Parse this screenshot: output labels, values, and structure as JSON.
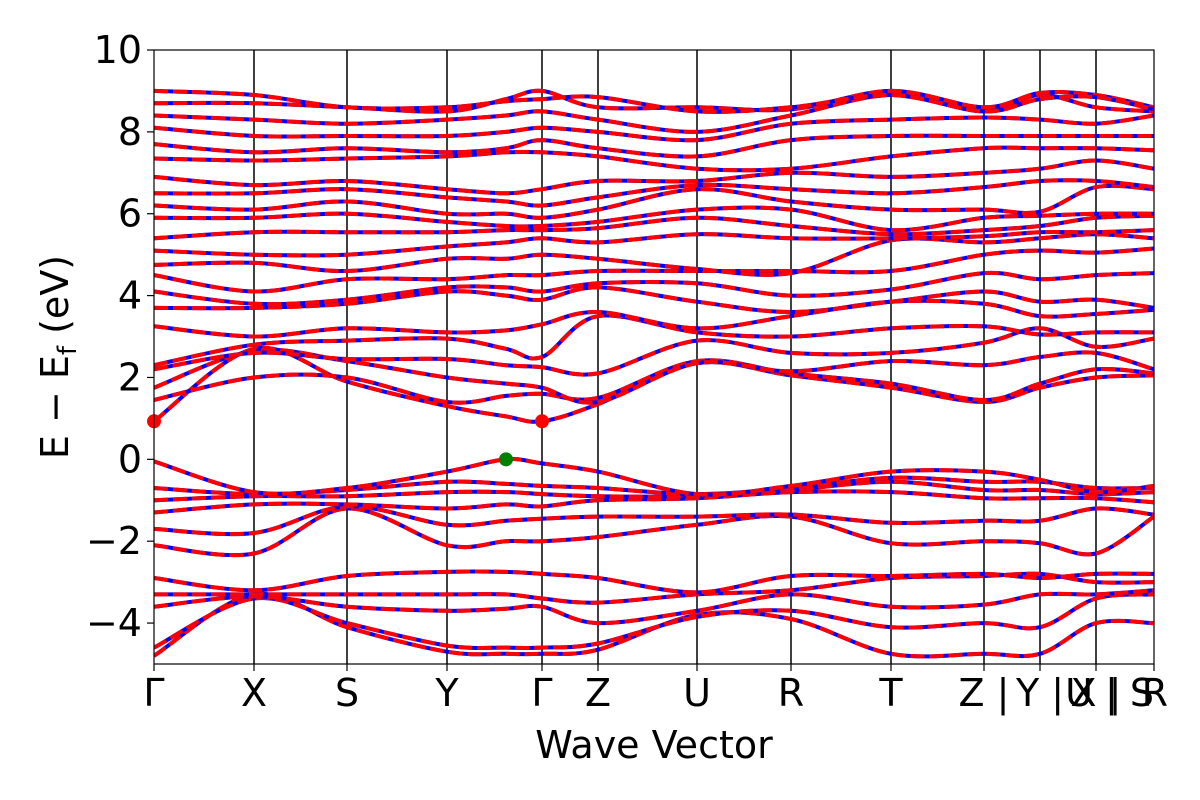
{
  "chart_data": {
    "type": "line",
    "title": "",
    "xlabel": "Wave Vector",
    "ylabel_main": "E − E",
    "ylabel_sub": "f",
    "ylabel_unit": " (eV)",
    "ylim": [
      -5,
      10
    ],
    "yticks": [
      -4,
      -2,
      0,
      2,
      4,
      6,
      8,
      10
    ],
    "ytick_labels": [
      "−4",
      "−2",
      "0",
      "2",
      "4",
      "6",
      "8",
      "10"
    ],
    "xlim": [
      0,
      10
    ],
    "kpoint_positions": [
      0,
      1.0,
      1.93,
      2.93,
      3.88,
      4.44,
      5.43,
      6.37,
      7.37,
      8.3,
      8.86,
      9.42,
      10.0
    ],
    "kpoint_labels": [
      "Γ",
      "X",
      "S",
      "Y",
      "Γ",
      "Z",
      "U",
      "R",
      "T",
      "Z |",
      "Y |",
      "X |",
      "U | S"
    ],
    "last_label": "R",
    "colors": {
      "spin_up": "#ff0000",
      "spin_down": "#0000ff",
      "vbm": "#008000",
      "cbm": "#ff0000",
      "kline": "#000000"
    },
    "vbm": {
      "x": 3.52,
      "y": 0.0
    },
    "cbm": [
      {
        "x": 0.0,
        "y": 0.93
      },
      {
        "x": 3.88,
        "y": 0.93
      }
    ],
    "bands": [
      {
        "name": "",
        "x": [
          0,
          1.0,
          1.93,
          2.93,
          3.52,
          3.88,
          4.44,
          5.43,
          6.37,
          7.37,
          8.3,
          8.86,
          9.42,
          10.0
        ],
        "y": [
          -4.8,
          -3.3,
          -4.1,
          -4.7,
          -4.75,
          -4.75,
          -4.65,
          -3.8,
          -3.9,
          -4.75,
          -4.75,
          -4.75,
          -4.0,
          -4.0
        ]
      },
      {
        "name": "",
        "x": [
          0,
          1.0,
          1.93,
          2.93,
          3.52,
          3.88,
          4.44,
          5.43,
          6.37,
          7.37,
          8.3,
          8.86,
          9.42,
          10.0
        ],
        "y": [
          -4.6,
          -3.4,
          -4.0,
          -4.55,
          -4.6,
          -4.6,
          -4.5,
          -3.85,
          -3.7,
          -4.1,
          -4.0,
          -4.1,
          -3.4,
          -3.3
        ]
      },
      {
        "name": "",
        "x": [
          0,
          1.0,
          1.93,
          2.93,
          3.52,
          3.88,
          4.44,
          5.43,
          6.37,
          7.37,
          8.3,
          8.86,
          9.42,
          10.0
        ],
        "y": [
          -3.6,
          -3.35,
          -3.6,
          -3.7,
          -3.65,
          -3.6,
          -4.0,
          -3.7,
          -3.3,
          -3.6,
          -3.55,
          -3.3,
          -3.3,
          -3.2
        ]
      },
      {
        "name": "",
        "x": [
          0,
          1.0,
          1.93,
          2.93,
          3.52,
          3.88,
          4.44,
          5.43,
          6.37,
          7.37,
          8.3,
          8.86,
          9.42,
          10.0
        ],
        "y": [
          -3.3,
          -3.3,
          -3.3,
          -3.3,
          -3.3,
          -3.4,
          -3.5,
          -3.3,
          -3.2,
          -2.9,
          -2.85,
          -2.8,
          -3.0,
          -3.0
        ]
      },
      {
        "name": "",
        "x": [
          0,
          1.0,
          1.93,
          2.93,
          3.52,
          3.88,
          4.44,
          5.43,
          6.37,
          7.37,
          8.3,
          8.86,
          9.42,
          10.0
        ],
        "y": [
          -2.9,
          -3.2,
          -2.85,
          -2.75,
          -2.75,
          -2.8,
          -2.9,
          -3.25,
          -2.85,
          -2.85,
          -2.8,
          -2.9,
          -2.8,
          -2.8
        ]
      },
      {
        "name": "",
        "x": [
          0,
          1.0,
          1.93,
          2.93,
          3.52,
          3.88,
          4.44,
          5.43,
          6.37,
          7.37,
          8.3,
          8.86,
          9.42,
          10.0
        ],
        "y": [
          -2.1,
          -2.3,
          -1.2,
          -2.1,
          -2.0,
          -2.0,
          -1.9,
          -1.6,
          -1.4,
          -2.05,
          -2.0,
          -2.05,
          -2.3,
          -1.4
        ]
      },
      {
        "name": "",
        "x": [
          0,
          1.0,
          1.93,
          2.93,
          3.52,
          3.88,
          4.44,
          5.43,
          6.37,
          7.37,
          8.3,
          8.86,
          9.42,
          10.0
        ],
        "y": [
          -1.7,
          -1.8,
          -1.15,
          -1.6,
          -1.5,
          -1.45,
          -1.4,
          -1.4,
          -1.35,
          -1.55,
          -1.5,
          -1.5,
          -1.2,
          -1.35
        ]
      },
      {
        "name": "",
        "x": [
          0,
          1.0,
          1.93,
          2.93,
          3.52,
          3.88,
          4.44,
          5.43,
          6.37,
          7.37,
          8.3,
          8.86,
          9.42,
          10.0
        ],
        "y": [
          -1.3,
          -1.1,
          -1.1,
          -1.2,
          -1.1,
          -1.15,
          -1.0,
          -0.95,
          -0.8,
          -0.8,
          -0.95,
          -0.95,
          -0.95,
          -1.05
        ]
      },
      {
        "name": "",
        "x": [
          0,
          1.0,
          1.93,
          2.93,
          3.52,
          3.88,
          4.44,
          5.43,
          6.37,
          7.37,
          8.3,
          8.86,
          9.42,
          10.0
        ],
        "y": [
          -1.0,
          -0.9,
          -0.9,
          -0.8,
          -0.8,
          -0.85,
          -0.9,
          -0.9,
          -0.75,
          -0.55,
          -0.75,
          -0.75,
          -0.85,
          -0.8
        ]
      },
      {
        "name": "",
        "x": [
          0,
          1.0,
          1.93,
          2.93,
          3.52,
          3.88,
          4.44,
          5.43,
          6.37,
          7.37,
          8.3,
          8.86,
          9.42,
          10.0
        ],
        "y": [
          -0.7,
          -0.85,
          -0.75,
          -0.55,
          -0.6,
          -0.65,
          -0.7,
          -0.85,
          -0.7,
          -0.45,
          -0.55,
          -0.55,
          -0.7,
          -0.7
        ]
      },
      {
        "name": "",
        "x": [
          0,
          1.0,
          1.93,
          2.93,
          3.52,
          3.88,
          4.44,
          5.43,
          6.37,
          7.37,
          8.3,
          8.86,
          9.42,
          10.0
        ],
        "y": [
          -0.05,
          -0.8,
          -0.7,
          -0.3,
          0.0,
          -0.1,
          -0.3,
          -0.85,
          -0.65,
          -0.3,
          -0.3,
          -0.5,
          -0.8,
          -0.65
        ]
      },
      {
        "name": "",
        "x": [
          0,
          1.0,
          1.93,
          2.93,
          3.52,
          3.88,
          4.44,
          5.43,
          6.37,
          7.37,
          8.3,
          8.86,
          9.42,
          10.0
        ],
        "y": [
          0.93,
          2.7,
          1.9,
          1.3,
          1.05,
          0.93,
          1.35,
          2.35,
          2.05,
          1.75,
          1.4,
          1.75,
          2.0,
          2.05
        ]
      },
      {
        "name": "",
        "x": [
          0,
          1.0,
          1.93,
          2.93,
          3.52,
          3.88,
          4.44,
          5.43,
          6.37,
          7.37,
          8.3,
          8.86,
          9.42,
          10.0
        ],
        "y": [
          1.45,
          2.0,
          2.0,
          1.4,
          1.55,
          1.6,
          1.5,
          2.4,
          2.1,
          1.85,
          1.45,
          1.85,
          2.2,
          2.1
        ]
      },
      {
        "name": "",
        "x": [
          0,
          1.0,
          1.93,
          2.93,
          3.52,
          3.88,
          4.44,
          5.43,
          6.37,
          7.37,
          8.3,
          8.86,
          9.42,
          10.0
        ],
        "y": [
          1.75,
          2.65,
          2.4,
          2.0,
          1.85,
          1.75,
          1.4,
          2.35,
          2.15,
          2.4,
          2.3,
          2.5,
          2.6,
          2.2
        ]
      },
      {
        "name": "",
        "x": [
          0,
          1.0,
          1.93,
          2.93,
          3.52,
          3.88,
          4.44,
          5.43,
          6.37,
          7.37,
          8.3,
          8.86,
          9.42,
          10.0
        ],
        "y": [
          2.2,
          2.6,
          2.45,
          2.45,
          2.3,
          2.25,
          2.1,
          2.9,
          2.6,
          2.6,
          2.85,
          3.2,
          2.75,
          2.95
        ]
      },
      {
        "name": "",
        "x": [
          0,
          1.0,
          1.93,
          2.93,
          3.52,
          3.88,
          4.44,
          5.43,
          6.37,
          7.37,
          8.3,
          8.86,
          9.42,
          10.0
        ],
        "y": [
          2.3,
          2.8,
          2.9,
          2.95,
          2.7,
          2.5,
          3.5,
          3.1,
          3.0,
          3.2,
          3.25,
          3.05,
          3.1,
          3.1
        ]
      },
      {
        "name": "",
        "x": [
          0,
          1.0,
          1.93,
          2.93,
          3.52,
          3.88,
          4.44,
          5.43,
          6.37,
          7.37,
          8.3,
          8.86,
          9.42,
          10.0
        ],
        "y": [
          3.25,
          3.0,
          3.2,
          3.1,
          3.15,
          3.3,
          3.6,
          3.2,
          3.5,
          3.85,
          3.8,
          3.5,
          3.55,
          3.65
        ]
      },
      {
        "name": "",
        "x": [
          0,
          1.0,
          1.93,
          2.93,
          3.52,
          3.88,
          4.44,
          5.43,
          6.37,
          7.37,
          8.3,
          8.86,
          9.42,
          10.0
        ],
        "y": [
          3.7,
          3.7,
          3.8,
          4.1,
          4.0,
          3.9,
          4.2,
          3.85,
          3.6,
          3.85,
          4.1,
          3.85,
          3.9,
          3.7
        ]
      },
      {
        "name": "",
        "x": [
          0,
          1.0,
          1.93,
          2.93,
          3.52,
          3.88,
          4.44,
          5.43,
          6.37,
          7.37,
          8.3,
          8.86,
          9.42,
          10.0
        ],
        "y": [
          4.1,
          3.8,
          3.9,
          4.2,
          4.2,
          4.1,
          4.3,
          4.3,
          4.0,
          4.15,
          4.55,
          4.4,
          4.5,
          4.55
        ]
      },
      {
        "name": "",
        "x": [
          0,
          1.0,
          1.93,
          2.93,
          3.52,
          3.88,
          4.44,
          5.43,
          6.37,
          7.37,
          8.3,
          8.86,
          9.42,
          10.0
        ],
        "y": [
          4.5,
          4.1,
          4.4,
          4.4,
          4.5,
          4.5,
          4.6,
          4.6,
          4.6,
          4.6,
          5.0,
          5.1,
          5.05,
          5.15
        ]
      },
      {
        "name": "",
        "x": [
          0,
          1.0,
          1.93,
          2.93,
          3.52,
          3.88,
          4.44,
          5.43,
          6.37,
          7.37,
          8.3,
          8.86,
          9.42,
          10.0
        ],
        "y": [
          4.75,
          4.8,
          4.6,
          4.9,
          4.9,
          5.0,
          4.9,
          4.65,
          4.55,
          5.35,
          5.3,
          5.4,
          5.5,
          5.4
        ]
      },
      {
        "name": "",
        "x": [
          0,
          1.0,
          1.93,
          2.93,
          3.52,
          3.88,
          4.44,
          5.43,
          6.37,
          7.37,
          8.3,
          8.86,
          9.42,
          10.0
        ],
        "y": [
          5.1,
          5.0,
          5.0,
          5.2,
          5.3,
          5.4,
          5.3,
          5.5,
          5.4,
          5.4,
          5.45,
          5.55,
          5.55,
          5.6
        ]
      },
      {
        "name": "",
        "x": [
          0,
          1.0,
          1.93,
          2.93,
          3.52,
          3.88,
          4.44,
          5.43,
          6.37,
          7.37,
          8.3,
          8.86,
          9.42,
          10.0
        ],
        "y": [
          5.4,
          5.55,
          5.55,
          5.55,
          5.6,
          5.6,
          5.65,
          5.9,
          5.7,
          5.5,
          5.6,
          5.7,
          5.9,
          5.95
        ]
      },
      {
        "name": "",
        "x": [
          0,
          1.0,
          1.93,
          2.93,
          3.52,
          3.88,
          4.44,
          5.43,
          6.37,
          7.37,
          8.3,
          8.86,
          9.42,
          10.0
        ],
        "y": [
          5.9,
          5.9,
          6.0,
          5.8,
          5.7,
          5.7,
          5.8,
          6.1,
          6.1,
          5.6,
          5.9,
          5.95,
          6.0,
          6.0
        ]
      },
      {
        "name": "",
        "x": [
          0,
          1.0,
          1.93,
          2.93,
          3.52,
          3.88,
          4.44,
          5.43,
          6.37,
          7.37,
          8.3,
          8.86,
          9.42,
          10.0
        ],
        "y": [
          6.2,
          6.1,
          6.3,
          6.0,
          6.0,
          5.9,
          6.1,
          6.6,
          6.3,
          6.1,
          6.1,
          6.05,
          6.65,
          6.6
        ]
      },
      {
        "name": "",
        "x": [
          0,
          1.0,
          1.93,
          2.93,
          3.52,
          3.88,
          4.44,
          5.43,
          6.37,
          7.37,
          8.3,
          8.86,
          9.42,
          10.0
        ],
        "y": [
          6.5,
          6.5,
          6.6,
          6.4,
          6.3,
          6.2,
          6.4,
          6.7,
          6.6,
          6.5,
          6.65,
          6.8,
          6.8,
          6.65
        ]
      },
      {
        "name": "",
        "x": [
          0,
          1.0,
          1.93,
          2.93,
          3.52,
          3.88,
          4.44,
          5.43,
          6.37,
          7.37,
          8.3,
          8.86,
          9.42,
          10.0
        ],
        "y": [
          6.9,
          6.7,
          6.8,
          6.6,
          6.5,
          6.6,
          6.8,
          6.8,
          7.0,
          6.9,
          7.0,
          7.1,
          7.3,
          7.1
        ]
      },
      {
        "name": "",
        "x": [
          0,
          1.0,
          1.93,
          2.93,
          3.52,
          3.88,
          4.44,
          5.43,
          6.37,
          7.37,
          8.3,
          8.86,
          9.42,
          10.0
        ],
        "y": [
          7.35,
          7.3,
          7.35,
          7.4,
          7.5,
          7.5,
          7.4,
          7.1,
          7.1,
          7.4,
          7.6,
          7.6,
          7.6,
          7.55
        ]
      },
      {
        "name": "",
        "x": [
          0,
          1.0,
          1.93,
          2.93,
          3.52,
          3.88,
          4.44,
          5.43,
          6.37,
          7.37,
          8.3,
          8.86,
          9.42,
          10.0
        ],
        "y": [
          7.7,
          7.5,
          7.6,
          7.5,
          7.6,
          7.8,
          7.6,
          7.4,
          7.8,
          7.9,
          7.9,
          7.9,
          7.9,
          7.9
        ]
      },
      {
        "name": "",
        "x": [
          0,
          1.0,
          1.93,
          2.93,
          3.52,
          3.88,
          4.44,
          5.43,
          6.37,
          7.37,
          8.3,
          8.86,
          9.42,
          10.0
        ],
        "y": [
          8.1,
          7.9,
          7.9,
          7.9,
          8.0,
          8.1,
          8.0,
          7.8,
          8.2,
          8.3,
          8.35,
          8.3,
          8.2,
          8.4
        ]
      },
      {
        "name": "",
        "x": [
          0,
          1.0,
          1.93,
          2.93,
          3.52,
          3.88,
          4.44,
          5.43,
          6.37,
          7.37,
          8.3,
          8.86,
          9.42,
          10.0
        ],
        "y": [
          8.4,
          8.3,
          8.2,
          8.3,
          8.4,
          8.5,
          8.3,
          8.0,
          8.4,
          8.9,
          8.5,
          8.9,
          8.6,
          8.5
        ]
      },
      {
        "name": "",
        "x": [
          0,
          1.0,
          1.93,
          2.93,
          3.52,
          3.88,
          4.44,
          5.43,
          6.37,
          7.37,
          8.3,
          8.86,
          9.42,
          10.0
        ],
        "y": [
          8.7,
          8.7,
          8.6,
          8.5,
          8.8,
          9.0,
          8.6,
          8.6,
          8.55,
          9.0,
          8.6,
          8.95,
          8.9,
          8.6
        ]
      },
      {
        "name": "",
        "x": [
          0,
          1.0,
          1.93,
          2.93,
          3.52,
          3.88,
          4.44,
          5.43,
          6.37,
          7.37,
          8.3,
          8.86,
          9.42,
          10.0
        ],
        "y": [
          9.0,
          8.9,
          8.6,
          8.6,
          8.75,
          8.8,
          8.85,
          8.5,
          8.6,
          8.9,
          8.5,
          8.8,
          8.85,
          8.55
        ]
      }
    ]
  }
}
